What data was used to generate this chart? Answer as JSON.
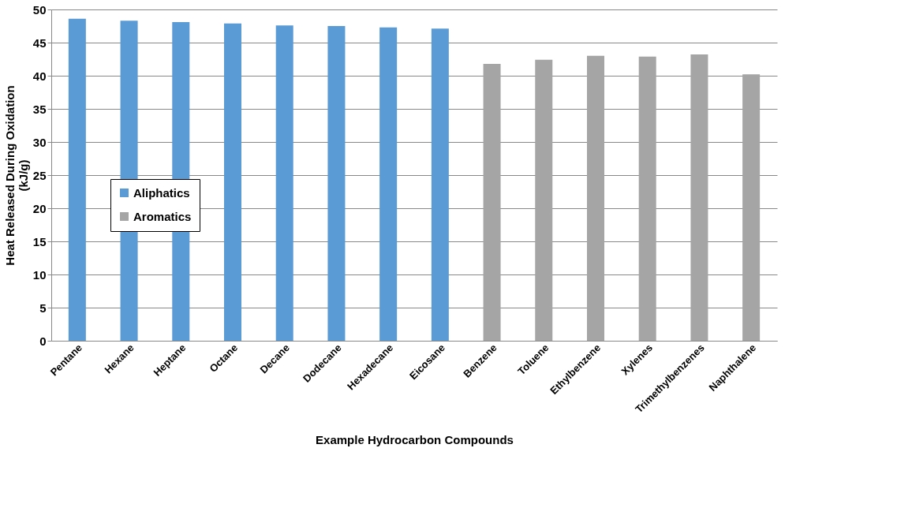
{
  "chart_data": {
    "type": "bar",
    "xlabel": "Example Hydrocarbon Compounds",
    "ylabel": "Heat Released During Oxidation\n(kJ/g)",
    "categories": [
      "Pentane",
      "Hexane",
      "Heptane",
      "Octane",
      "Decane",
      "Dodecane",
      "Hexadecane",
      "Eicosane",
      "Benzene",
      "Toluene",
      "Ethylbenzene",
      "Xylenes",
      "Trimethylbenzenes",
      "Naphthalene"
    ],
    "series": [
      {
        "name": "Aliphatics",
        "color": "#5b9bd5",
        "values": [
          48.6,
          48.3,
          48.1,
          47.9,
          47.6,
          47.5,
          47.3,
          47.1,
          null,
          null,
          null,
          null,
          null,
          null
        ]
      },
      {
        "name": "Aromatics",
        "color": "#a5a5a5",
        "values": [
          null,
          null,
          null,
          null,
          null,
          null,
          null,
          null,
          41.8,
          42.4,
          43.0,
          42.9,
          43.2,
          40.2
        ]
      }
    ],
    "ylim": [
      0,
      50
    ],
    "yticks": [
      0,
      5,
      10,
      15,
      20,
      25,
      30,
      35,
      40,
      45,
      50
    ],
    "grid": "y",
    "legend": "left"
  }
}
